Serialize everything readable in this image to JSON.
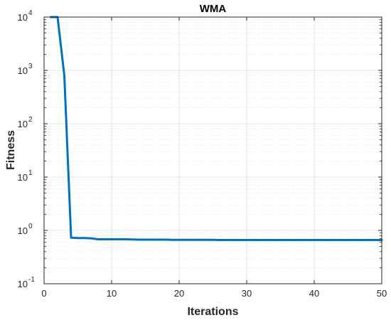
{
  "chart_data": {
    "type": "line",
    "title": "WMA",
    "xlabel": "Iterations",
    "ylabel": "Fitness",
    "xlim": [
      0,
      50
    ],
    "ylim": [
      0.1,
      10000
    ],
    "yscale": "log",
    "x_ticks": [
      "0",
      "10",
      "20",
      "30",
      "40",
      "50"
    ],
    "y_ticks": [
      {
        "base": "10",
        "exp": "-1"
      },
      {
        "base": "10",
        "exp": "0"
      },
      {
        "base": "10",
        "exp": "1"
      },
      {
        "base": "10",
        "exp": "2"
      },
      {
        "base": "10",
        "exp": "3"
      },
      {
        "base": "10",
        "exp": "4"
      }
    ],
    "grid": true,
    "minor_grid": true,
    "line_color": "#0072BD",
    "series": [
      {
        "x": [
          1,
          2,
          3,
          4,
          5,
          6,
          7,
          8,
          9,
          10,
          11,
          12,
          13,
          14,
          15,
          16,
          17,
          18,
          19,
          20,
          21,
          22,
          23,
          24,
          25,
          26,
          27,
          28,
          29,
          30,
          31,
          32,
          33,
          34,
          35,
          36,
          37,
          38,
          39,
          40,
          41,
          42,
          43,
          44,
          45,
          46,
          47,
          48,
          49,
          50
        ],
        "values": [
          10000,
          10000,
          800,
          0.73,
          0.72,
          0.72,
          0.71,
          0.68,
          0.68,
          0.68,
          0.68,
          0.68,
          0.675,
          0.672,
          0.67,
          0.67,
          0.67,
          0.67,
          0.665,
          0.665,
          0.665,
          0.665,
          0.665,
          0.665,
          0.665,
          0.662,
          0.662,
          0.662,
          0.662,
          0.662,
          0.662,
          0.662,
          0.662,
          0.662,
          0.662,
          0.662,
          0.662,
          0.662,
          0.662,
          0.662,
          0.662,
          0.662,
          0.662,
          0.662,
          0.662,
          0.662,
          0.662,
          0.662,
          0.662,
          0.662
        ]
      }
    ]
  }
}
